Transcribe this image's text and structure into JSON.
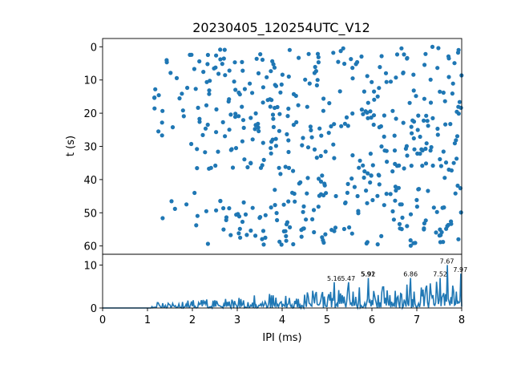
{
  "chart_data": [
    {
      "type": "scatter",
      "title": "20230405_120254UTC_V12",
      "xlabel": "",
      "ylabel": "t (s)",
      "xlim": [
        0,
        8
      ],
      "ylim": [
        62.5,
        -2.5
      ],
      "y_inverted": true,
      "yticks": [
        0,
        10,
        20,
        30,
        40,
        50,
        60
      ],
      "color": "#1f77b4",
      "point_groups": [
        {
          "x_range": [
            1.15,
            2.15
          ],
          "t_range": [
            0,
            15
          ]
        },
        {
          "x_range": [
            1.15,
            2.15
          ],
          "t_range": [
            15,
            30
          ]
        },
        {
          "x_range": [
            1.2,
            2.15
          ],
          "t_range": [
            44,
            55
          ]
        },
        {
          "x_range": [
            2.1,
            8.0
          ],
          "t_range": [
            0,
            37
          ]
        },
        {
          "x_range": [
            3.8,
            8.0
          ],
          "t_range": [
            37,
            45
          ]
        },
        {
          "x_range": [
            2.0,
            8.0
          ],
          "t_range": [
            46,
            60
          ]
        }
      ],
      "point_counts": [
        12,
        12,
        6,
        300,
        50,
        120
      ]
    },
    {
      "type": "line",
      "xlabel": "IPI (ms)",
      "ylabel": "",
      "xlim": [
        0,
        8
      ],
      "ylim": [
        0,
        12.5
      ],
      "xticks": [
        0,
        1,
        2,
        3,
        4,
        5,
        6,
        7,
        8
      ],
      "yticks": [
        0,
        10
      ],
      "color": "#1f77b4",
      "peaks": [
        {
          "x": 5.16,
          "y": 6.0,
          "label": "5.16"
        },
        {
          "x": 5.47,
          "y": 6.0,
          "label": "5.47"
        },
        {
          "x": 5.91,
          "y": 7.0,
          "label": "5.91"
        },
        {
          "x": 5.92,
          "y": 7.0,
          "label": "5.92"
        },
        {
          "x": 6.86,
          "y": 7.0,
          "label": "6.86"
        },
        {
          "x": 7.52,
          "y": 7.0,
          "label": "7.52"
        },
        {
          "x": 7.67,
          "y": 10.0,
          "label": "7.67"
        },
        {
          "x": 7.97,
          "y": 8.0,
          "label": "7.97"
        }
      ]
    }
  ]
}
